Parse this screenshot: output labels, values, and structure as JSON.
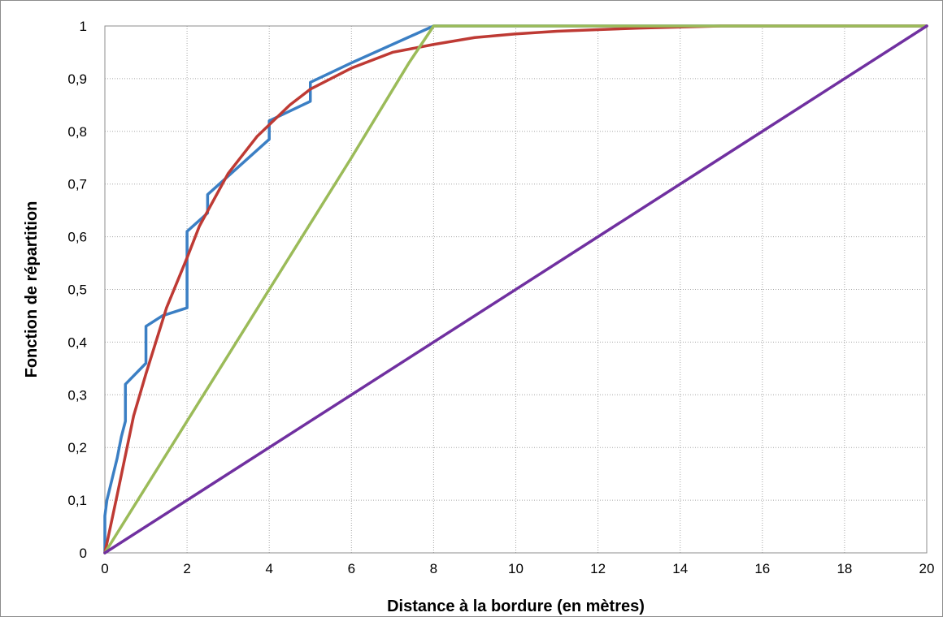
{
  "chart_data": {
    "type": "line",
    "title": "",
    "xlabel": "Distance à la bordure (en mètres)",
    "ylabel": "Fonction de répartition",
    "xlim": [
      0,
      20
    ],
    "ylim": [
      0,
      1
    ],
    "x_ticks": [
      0,
      2,
      4,
      6,
      8,
      10,
      12,
      14,
      16,
      18,
      20
    ],
    "y_ticks": [
      0,
      0.1,
      0.2,
      0.3,
      0.4,
      0.5,
      0.6,
      0.7,
      0.8,
      0.9,
      1
    ],
    "x_tick_labels": [
      "0",
      "2",
      "4",
      "6",
      "8",
      "10",
      "12",
      "14",
      "16",
      "18",
      "20"
    ],
    "y_tick_labels": [
      "0",
      "0,1",
      "0,2",
      "0,3",
      "0,4",
      "0,5",
      "0,6",
      "0,7",
      "0,8",
      "0,9",
      "1"
    ],
    "grid": true,
    "legend": "none",
    "series": [
      {
        "color": "#3b7fc4",
        "points": [
          [
            0,
            0
          ],
          [
            0,
            0.07
          ],
          [
            0.05,
            0.1
          ],
          [
            0.3,
            0.18
          ],
          [
            0.4,
            0.22
          ],
          [
            0.5,
            0.25
          ],
          [
            0.5,
            0.32
          ],
          [
            1,
            0.36
          ],
          [
            1,
            0.43
          ],
          [
            1.4,
            0.45
          ],
          [
            2,
            0.465
          ],
          [
            2,
            0.61
          ],
          [
            2.5,
            0.645
          ],
          [
            2.5,
            0.68
          ],
          [
            3,
            0.715
          ],
          [
            4,
            0.785
          ],
          [
            4,
            0.82
          ],
          [
            5,
            0.857
          ],
          [
            5,
            0.893
          ],
          [
            6,
            0.93
          ],
          [
            8,
            1
          ],
          [
            20,
            1
          ]
        ]
      },
      {
        "color": "#be3a34",
        "points": [
          [
            0,
            0
          ],
          [
            0.3,
            0.11
          ],
          [
            0.7,
            0.26
          ],
          [
            1,
            0.34
          ],
          [
            1.5,
            0.465
          ],
          [
            2,
            0.56
          ],
          [
            2.3,
            0.62
          ],
          [
            3,
            0.72
          ],
          [
            3.7,
            0.79
          ],
          [
            4.5,
            0.85
          ],
          [
            5,
            0.88
          ],
          [
            6,
            0.92
          ],
          [
            7,
            0.95
          ],
          [
            8,
            0.965
          ],
          [
            9,
            0.978
          ],
          [
            10,
            0.985
          ],
          [
            11,
            0.99
          ],
          [
            12,
            0.993
          ],
          [
            13,
            0.996
          ],
          [
            15,
            1
          ],
          [
            20,
            1
          ]
        ]
      },
      {
        "color": "#9bbb59",
        "points": [
          [
            0,
            0
          ],
          [
            2,
            0.25
          ],
          [
            4,
            0.5
          ],
          [
            6,
            0.75
          ],
          [
            7.4,
            0.93
          ],
          [
            8,
            1
          ],
          [
            20,
            1
          ]
        ]
      },
      {
        "color": "#7030a0",
        "points": [
          [
            0,
            0
          ],
          [
            20,
            1
          ]
        ]
      }
    ]
  }
}
